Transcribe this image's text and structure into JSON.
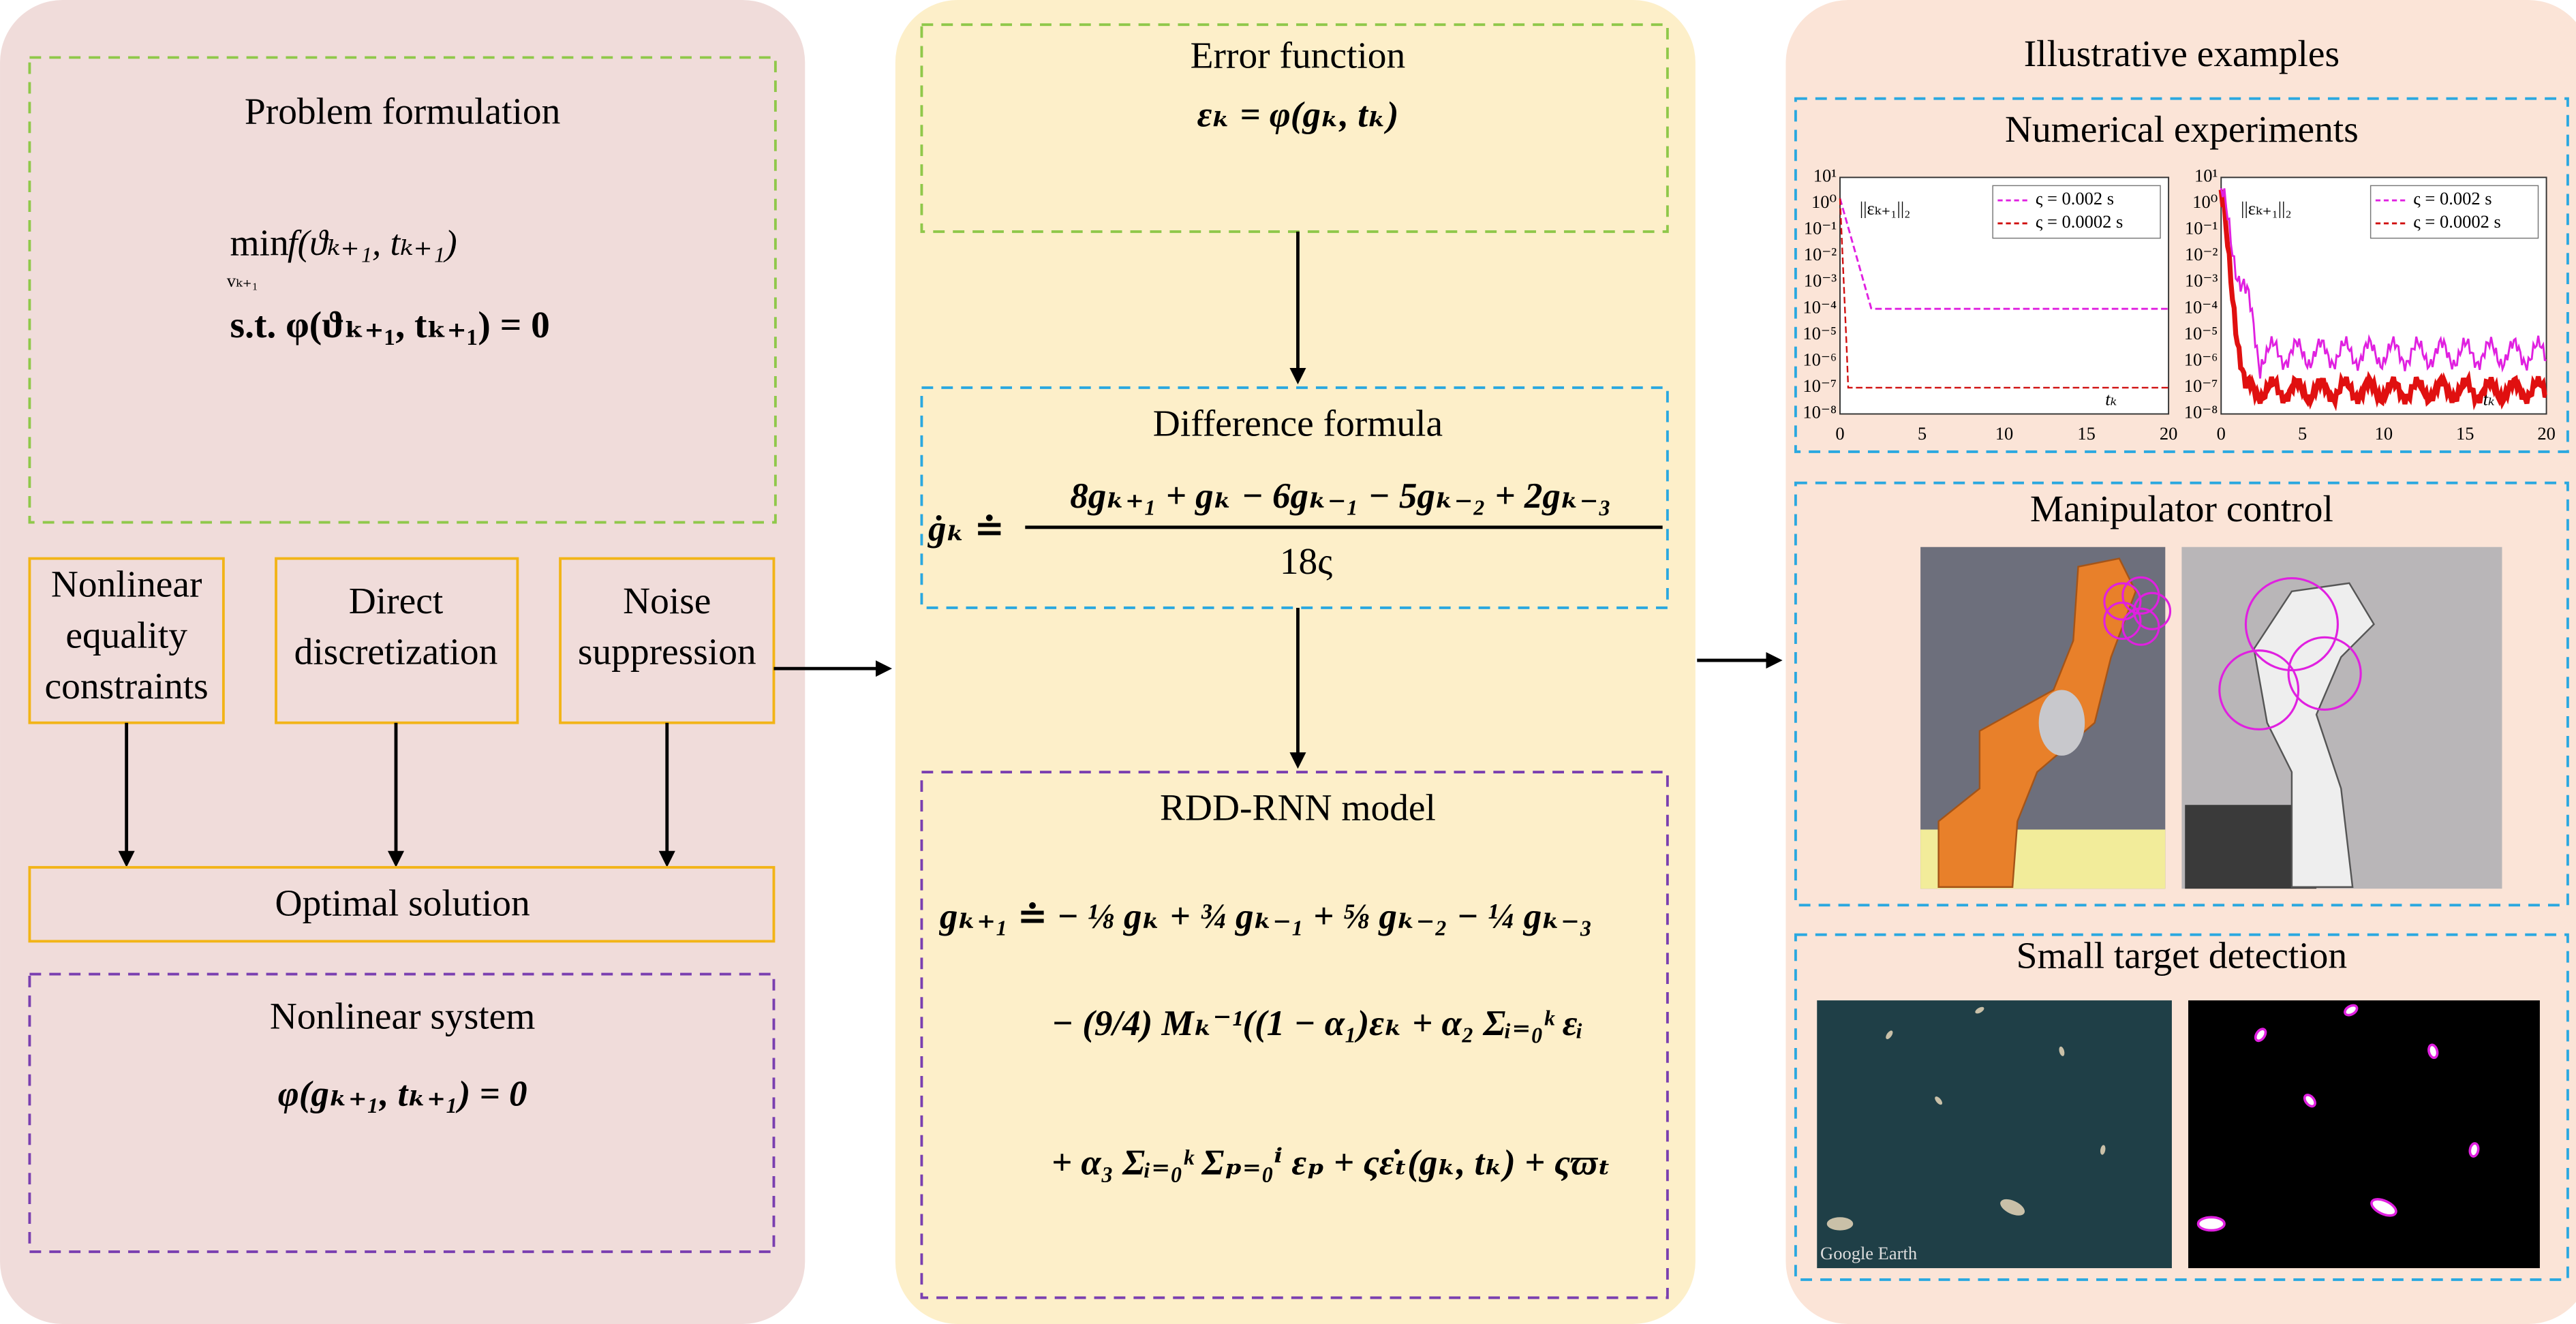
{
  "left": {
    "problem_title": "Problem formulation",
    "objective_operator": "min",
    "objective_variable": "vₖ₊₁",
    "objective": "f(ϑₖ₊₁, tₖ₊₁)",
    "constraint": "s.t. φ(ϑₖ₊₁, tₖ₊₁) = 0",
    "constraints_box": [
      "Nonlinear",
      "equality",
      "constraints"
    ],
    "discretization_box": [
      "Direct",
      "discretization"
    ],
    "noise_box": [
      "Noise",
      "suppression"
    ],
    "optimal_solution": "Optimal solution",
    "system_title": "Nonlinear system",
    "system_equation": "φ(gₖ₊₁, tₖ₊₁) = 0"
  },
  "middle": {
    "error_title": "Error function",
    "error_equation": "εₖ = φ(gₖ, tₖ)",
    "difference_title": "Difference formula",
    "difference_lhs": "ġₖ ≐",
    "difference_numerator": "8gₖ₊₁ + gₖ − 6gₖ₋₁ − 5gₖ₋₂ + 2gₖ₋₃",
    "difference_denominator": "18ς",
    "model_title": "RDD-RNN model",
    "model_lines": [
      "gₖ₊₁ ≐ − ⅛ gₖ + ¾ gₖ₋₁ + ⅝ gₖ₋₂ − ¼ gₖ₋₃",
      "− (9/4) Mₖ⁻¹((1 − α₁)εₖ + α₂ Σᵢ₌₀ᵏ εᵢ",
      "+ α₃ Σᵢ₌₀ᵏ Σₚ₌₀ⁱ εₚ + ςε̇ₜ(gₖ, tₖ) + ςϖₜ"
    ]
  },
  "right": {
    "title": "Illustrative examples",
    "numerical_title": "Numerical experiments",
    "plots": [
      {
        "y_label": "||εₖ₊₁||₂",
        "x_label": "tₖ",
        "legend": [
          "ς = 0.002 s",
          "ς = 0.0002 s"
        ],
        "x_ticks": [
          "0",
          "5",
          "10",
          "15",
          "20"
        ],
        "y_ticks": [
          "10¹",
          "10⁰",
          "10⁻¹",
          "10⁻²",
          "10⁻³",
          "10⁻⁴",
          "10⁻⁵",
          "10⁻⁶",
          "10⁻⁷",
          "10⁻⁸"
        ]
      },
      {
        "y_label": "||εₖ₊₁||₂",
        "x_label": "tₖ",
        "legend": [
          "ς = 0.002 s",
          "ς = 0.0002 s"
        ],
        "x_ticks": [
          "0",
          "5",
          "10",
          "15",
          "20"
        ],
        "y_ticks": [
          "10¹",
          "10⁰",
          "10⁻¹",
          "10⁻²",
          "10⁻³",
          "10⁻⁴",
          "10⁻⁵",
          "10⁻⁶",
          "10⁻⁷",
          "10⁻⁸"
        ]
      }
    ],
    "manipulator_title": "Manipulator control",
    "detection_title": "Small target detection",
    "watermark": "Google Earth"
  }
}
